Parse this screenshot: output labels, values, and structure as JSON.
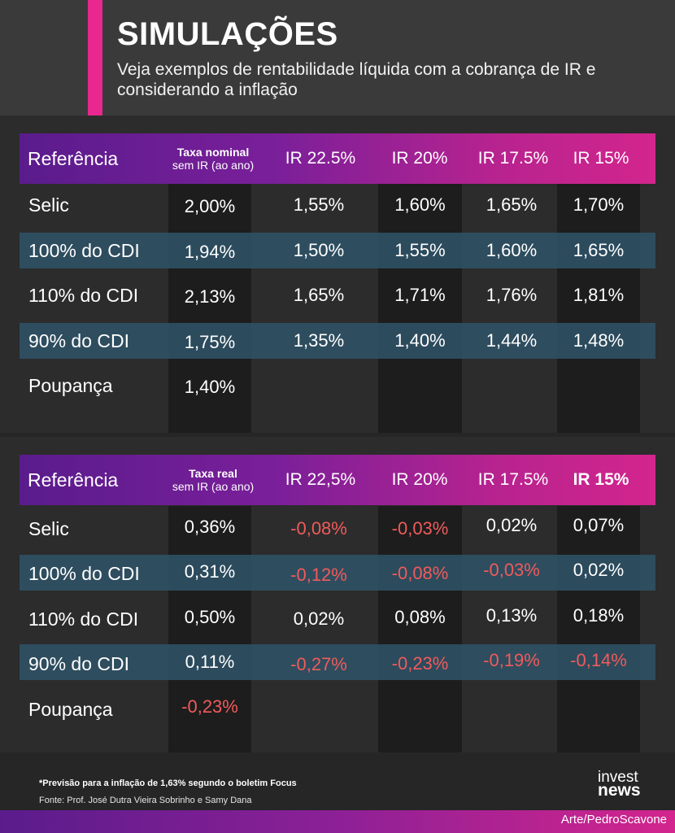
{
  "header": {
    "title": "SIMULAÇÕES",
    "subtitle": "Veja exemplos de rentabilidade líquida com a cobrança de IR e considerando a inflação",
    "accent_color": "#e8288f"
  },
  "table_nominal": {
    "headers": {
      "reference": "Referência",
      "rate_line1": "Taxa nominal",
      "rate_line2": "sem IR (ao ano)",
      "ir": [
        "IR 22.5%",
        "IR 20%",
        "IR 17.5%",
        "IR 15%"
      ]
    },
    "rows": [
      {
        "label": "Selic",
        "values": [
          "2,00%",
          "1,55%",
          "1,60%",
          "1,65%",
          "1,70%"
        ]
      },
      {
        "label": "100% do CDI",
        "values": [
          "1,94%",
          "1,50%",
          "1,55%",
          "1,60%",
          "1,65%"
        ]
      },
      {
        "label": "110% do CDI",
        "values": [
          "2,13%",
          "1,65%",
          "1,71%",
          "1,76%",
          "1,81%"
        ]
      },
      {
        "label": "90% do CDI",
        "values": [
          "1,75%",
          "1,35%",
          "1,40%",
          "1,44%",
          "1,48%"
        ]
      },
      {
        "label": "Poupança",
        "values": [
          "1,40%"
        ]
      }
    ]
  },
  "table_real": {
    "headers": {
      "reference": "Referência",
      "rate_line1": "Taxa real",
      "rate_line2": "sem IR (ao ano)",
      "ir": [
        "IR 22,5%",
        "IR 20%",
        "IR 17.5%",
        "IR 15%"
      ]
    },
    "rows": [
      {
        "label": "Selic",
        "values": [
          "0,36%",
          "-0,08%",
          "-0,03%",
          "0,02%",
          "0,07%"
        ]
      },
      {
        "label": "100% do CDI",
        "values": [
          "0,31%",
          "-0,12%",
          "-0,08%",
          "-0,03%",
          "0,02%"
        ]
      },
      {
        "label": "110% do CDI",
        "values": [
          "0,50%",
          "0,02%",
          "0,08%",
          "0,13%",
          "0,18%"
        ]
      },
      {
        "label": "90% do CDI",
        "values": [
          "0,11%",
          "-0,27%",
          "-0,23%",
          "-0,19%",
          "-0,14%"
        ]
      },
      {
        "label": "Poupança",
        "values": [
          "-0,23%"
        ]
      }
    ]
  },
  "footer": {
    "note": "*Previsão para a inflação de 1,63% segundo o boletim Focus",
    "source": "Fonte: Prof. José Dutra Vieira Sobrinho e Samy Dana",
    "logo_top": "invest",
    "logo_bottom": "news",
    "credit": "Arte/PedroScavone"
  },
  "colors": {
    "negative": "#f05b5b",
    "gradient_start": "#5a1c8c",
    "gradient_end": "#d3258d",
    "highlight_row": "#2f5368"
  }
}
